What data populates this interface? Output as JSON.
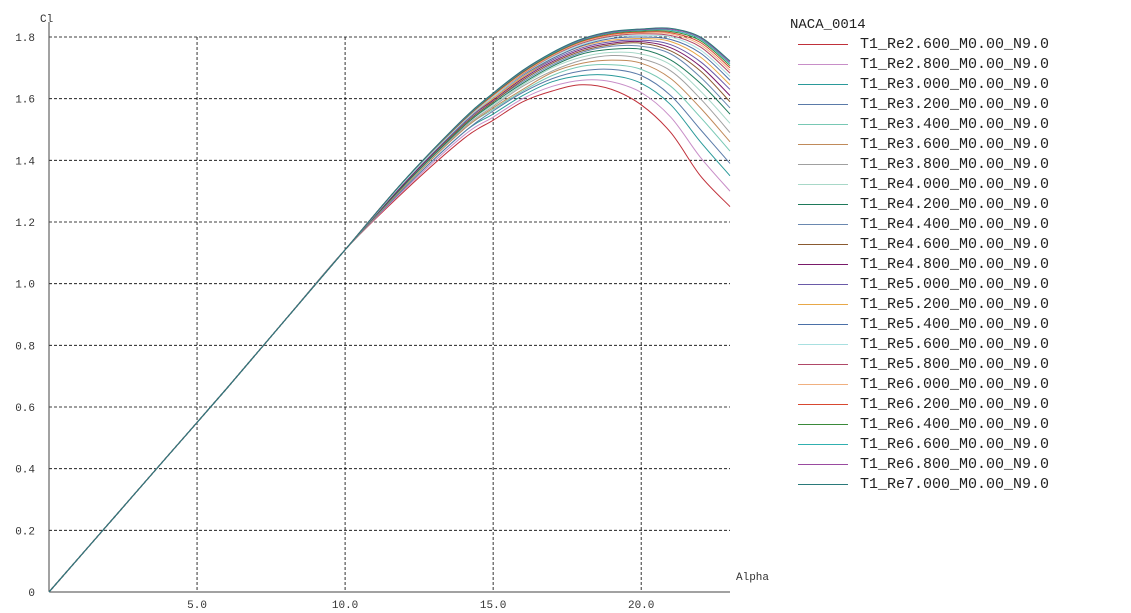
{
  "chart_data": {
    "type": "line",
    "title": "",
    "xlabel": "Alpha",
    "ylabel": "Cl",
    "xlim": [
      0,
      23
    ],
    "ylim": [
      0,
      1.8
    ],
    "x_ticks": [
      "5.0",
      "10.0",
      "15.0",
      "20.0"
    ],
    "y_ticks": [
      "0",
      "0.2",
      "0.4",
      "0.6",
      "0.8",
      "1.0",
      "1.2",
      "1.4",
      "1.6",
      "1.8"
    ],
    "grid": true,
    "legend_title": "NACA_0014",
    "legend_placement": "right",
    "series": [
      {
        "name": "T1_Re2.600_M0.00_N9.0",
        "color": "#c0303a",
        "x": [
          0,
          2,
          4,
          6,
          8,
          10,
          12,
          14,
          15,
          16,
          17,
          18,
          19,
          20,
          21,
          22,
          23
        ],
        "y": [
          0,
          0.22,
          0.44,
          0.66,
          0.885,
          1.11,
          1.3,
          1.47,
          1.53,
          1.59,
          1.625,
          1.645,
          1.63,
          1.58,
          1.49,
          1.35,
          1.25
        ]
      },
      {
        "name": "T1_Re2.800_M0.00_N9.0",
        "color": "#c88ec8",
        "x": [
          0,
          2,
          4,
          6,
          8,
          10,
          12,
          14,
          15,
          16,
          17,
          18,
          19,
          20,
          21,
          22,
          23
        ],
        "y": [
          0,
          0.22,
          0.44,
          0.66,
          0.885,
          1.11,
          1.305,
          1.48,
          1.54,
          1.6,
          1.64,
          1.66,
          1.655,
          1.62,
          1.54,
          1.41,
          1.3
        ]
      },
      {
        "name": "T1_Re3.000_M0.00_N9.0",
        "color": "#2a9a9a",
        "x": [
          0,
          2,
          4,
          6,
          8,
          10,
          12,
          14,
          15,
          16,
          17,
          18,
          19,
          20,
          21,
          22,
          23
        ],
        "y": [
          0,
          0.22,
          0.44,
          0.66,
          0.885,
          1.11,
          1.31,
          1.49,
          1.55,
          1.61,
          1.655,
          1.675,
          1.675,
          1.65,
          1.58,
          1.46,
          1.35
        ]
      },
      {
        "name": "T1_Re3.200_M0.00_N9.0",
        "color": "#5a7aa8",
        "x": [
          0,
          2,
          4,
          6,
          8,
          10,
          12,
          14,
          15,
          16,
          17,
          18,
          19,
          20,
          21,
          22,
          23
        ],
        "y": [
          0,
          0.22,
          0.44,
          0.66,
          0.885,
          1.11,
          1.31,
          1.49,
          1.56,
          1.62,
          1.665,
          1.69,
          1.695,
          1.675,
          1.61,
          1.5,
          1.39
        ]
      },
      {
        "name": "T1_Re3.400_M0.00_N9.0",
        "color": "#78c8b4",
        "x": [
          0,
          2,
          4,
          6,
          8,
          10,
          12,
          14,
          15,
          16,
          17,
          18,
          19,
          20,
          21,
          22,
          23
        ],
        "y": [
          0,
          0.22,
          0.44,
          0.66,
          0.885,
          1.11,
          1.315,
          1.5,
          1.565,
          1.625,
          1.675,
          1.705,
          1.71,
          1.695,
          1.64,
          1.54,
          1.43
        ]
      },
      {
        "name": "T1_Re3.600_M0.00_N9.0",
        "color": "#c08a5a",
        "x": [
          0,
          2,
          4,
          6,
          8,
          10,
          12,
          14,
          15,
          16,
          17,
          18,
          19,
          20,
          21,
          22,
          23
        ],
        "y": [
          0,
          0.22,
          0.44,
          0.66,
          0.885,
          1.11,
          1.315,
          1.5,
          1.57,
          1.63,
          1.685,
          1.715,
          1.725,
          1.715,
          1.665,
          1.57,
          1.46
        ]
      },
      {
        "name": "T1_Re3.800_M0.00_N9.0",
        "color": "#a0a0a0",
        "x": [
          0,
          2,
          4,
          6,
          8,
          10,
          12,
          14,
          15,
          16,
          17,
          18,
          19,
          20,
          21,
          22,
          23
        ],
        "y": [
          0,
          0.22,
          0.44,
          0.66,
          0.885,
          1.11,
          1.32,
          1.505,
          1.575,
          1.64,
          1.69,
          1.725,
          1.74,
          1.73,
          1.69,
          1.6,
          1.49
        ]
      },
      {
        "name": "T1_Re4.000_M0.00_N9.0",
        "color": "#a8d8c8",
        "x": [
          0,
          2,
          4,
          6,
          8,
          10,
          12,
          14,
          15,
          16,
          17,
          18,
          19,
          20,
          21,
          22,
          23
        ],
        "y": [
          0,
          0.22,
          0.44,
          0.66,
          0.885,
          1.11,
          1.32,
          1.51,
          1.58,
          1.645,
          1.7,
          1.735,
          1.75,
          1.745,
          1.71,
          1.625,
          1.52
        ]
      },
      {
        "name": "T1_Re4.200_M0.00_N9.0",
        "color": "#1e7a5a",
        "x": [
          0,
          2,
          4,
          6,
          8,
          10,
          12,
          14,
          15,
          16,
          17,
          18,
          19,
          20,
          21,
          22,
          23
        ],
        "y": [
          0,
          0.22,
          0.44,
          0.66,
          0.885,
          1.11,
          1.32,
          1.51,
          1.585,
          1.65,
          1.705,
          1.745,
          1.76,
          1.76,
          1.725,
          1.65,
          1.55
        ]
      },
      {
        "name": "T1_Re4.400_M0.00_N9.0",
        "color": "#6a88b0",
        "x": [
          0,
          2,
          4,
          6,
          8,
          10,
          12,
          14,
          15,
          16,
          17,
          18,
          19,
          20,
          21,
          22,
          23
        ],
        "y": [
          0,
          0.22,
          0.44,
          0.66,
          0.885,
          1.11,
          1.325,
          1.515,
          1.59,
          1.655,
          1.71,
          1.75,
          1.77,
          1.77,
          1.745,
          1.67,
          1.57
        ]
      },
      {
        "name": "T1_Re4.600_M0.00_N9.0",
        "color": "#8a5a30",
        "x": [
          0,
          2,
          4,
          6,
          8,
          10,
          12,
          14,
          15,
          16,
          17,
          18,
          19,
          20,
          21,
          22,
          23
        ],
        "y": [
          0,
          0.22,
          0.44,
          0.66,
          0.885,
          1.11,
          1.325,
          1.515,
          1.59,
          1.66,
          1.715,
          1.755,
          1.775,
          1.78,
          1.755,
          1.69,
          1.59
        ]
      },
      {
        "name": "T1_Re4.800_M0.00_N9.0",
        "color": "#7a1a6a",
        "x": [
          0,
          2,
          4,
          6,
          8,
          10,
          12,
          14,
          15,
          16,
          17,
          18,
          19,
          20,
          21,
          22,
          23
        ],
        "y": [
          0,
          0.22,
          0.44,
          0.66,
          0.885,
          1.11,
          1.325,
          1.52,
          1.595,
          1.665,
          1.72,
          1.76,
          1.78,
          1.785,
          1.765,
          1.705,
          1.61
        ]
      },
      {
        "name": "T1_Re5.000_M0.00_N9.0",
        "color": "#6a5aa8",
        "x": [
          0,
          2,
          4,
          6,
          8,
          10,
          12,
          14,
          15,
          16,
          17,
          18,
          19,
          20,
          21,
          22,
          23
        ],
        "y": [
          0,
          0.22,
          0.44,
          0.66,
          0.885,
          1.11,
          1.33,
          1.52,
          1.6,
          1.67,
          1.725,
          1.765,
          1.785,
          1.79,
          1.775,
          1.72,
          1.63
        ]
      },
      {
        "name": "T1_Re5.200_M0.00_N9.0",
        "color": "#e8a848",
        "x": [
          0,
          2,
          4,
          6,
          8,
          10,
          12,
          14,
          15,
          16,
          17,
          18,
          19,
          20,
          21,
          22,
          23
        ],
        "y": [
          0,
          0.22,
          0.44,
          0.66,
          0.885,
          1.11,
          1.33,
          1.525,
          1.6,
          1.67,
          1.73,
          1.77,
          1.79,
          1.795,
          1.785,
          1.735,
          1.645
        ]
      },
      {
        "name": "T1_Re5.400_M0.00_N9.0",
        "color": "#4a70a8",
        "x": [
          0,
          2,
          4,
          6,
          8,
          10,
          12,
          14,
          15,
          16,
          17,
          18,
          19,
          20,
          21,
          22,
          23
        ],
        "y": [
          0,
          0.22,
          0.44,
          0.66,
          0.885,
          1.11,
          1.33,
          1.525,
          1.605,
          1.675,
          1.73,
          1.772,
          1.795,
          1.8,
          1.792,
          1.748,
          1.66
        ]
      },
      {
        "name": "T1_Re5.600_M0.00_N9.0",
        "color": "#a8e0e0",
        "x": [
          0,
          2,
          4,
          6,
          8,
          10,
          12,
          14,
          15,
          16,
          17,
          18,
          19,
          20,
          21,
          22,
          23
        ],
        "y": [
          0,
          0.22,
          0.44,
          0.66,
          0.885,
          1.11,
          1.33,
          1.525,
          1.605,
          1.678,
          1.735,
          1.776,
          1.8,
          1.805,
          1.8,
          1.758,
          1.672
        ]
      },
      {
        "name": "T1_Re5.800_M0.00_N9.0",
        "color": "#b04868",
        "x": [
          0,
          2,
          4,
          6,
          8,
          10,
          12,
          14,
          15,
          16,
          17,
          18,
          19,
          20,
          21,
          22,
          23
        ],
        "y": [
          0,
          0.22,
          0.44,
          0.66,
          0.885,
          1.11,
          1.335,
          1.53,
          1.61,
          1.68,
          1.738,
          1.78,
          1.803,
          1.81,
          1.805,
          1.768,
          1.683
        ]
      },
      {
        "name": "T1_Re6.000_M0.00_N9.0",
        "color": "#f0b080",
        "x": [
          0,
          2,
          4,
          6,
          8,
          10,
          12,
          14,
          15,
          16,
          17,
          18,
          19,
          20,
          21,
          22,
          23
        ],
        "y": [
          0,
          0.22,
          0.44,
          0.66,
          0.885,
          1.11,
          1.335,
          1.53,
          1.61,
          1.682,
          1.74,
          1.783,
          1.806,
          1.813,
          1.81,
          1.775,
          1.692
        ]
      },
      {
        "name": "T1_Re6.200_M0.00_N9.0",
        "color": "#d84830",
        "x": [
          0,
          2,
          4,
          6,
          8,
          10,
          12,
          14,
          15,
          16,
          17,
          18,
          19,
          20,
          21,
          22,
          23
        ],
        "y": [
          0,
          0.22,
          0.44,
          0.66,
          0.885,
          1.11,
          1.335,
          1.53,
          1.612,
          1.685,
          1.743,
          1.786,
          1.809,
          1.816,
          1.814,
          1.782,
          1.7
        ]
      },
      {
        "name": "T1_Re6.400_M0.00_N9.0",
        "color": "#3a8a3a",
        "x": [
          0,
          2,
          4,
          6,
          8,
          10,
          12,
          14,
          15,
          16,
          17,
          18,
          19,
          20,
          21,
          22,
          23
        ],
        "y": [
          0,
          0.22,
          0.44,
          0.66,
          0.885,
          1.11,
          1.335,
          1.532,
          1.614,
          1.687,
          1.745,
          1.788,
          1.812,
          1.819,
          1.818,
          1.788,
          1.707
        ]
      },
      {
        "name": "T1_Re6.600_M0.00_N9.0",
        "color": "#30b0b0",
        "x": [
          0,
          2,
          4,
          6,
          8,
          10,
          12,
          14,
          15,
          16,
          17,
          18,
          19,
          20,
          21,
          22,
          23
        ],
        "y": [
          0,
          0.22,
          0.44,
          0.66,
          0.885,
          1.11,
          1.335,
          1.533,
          1.616,
          1.689,
          1.747,
          1.79,
          1.814,
          1.822,
          1.822,
          1.793,
          1.713
        ]
      },
      {
        "name": "T1_Re6.800_M0.00_N9.0",
        "color": "#9a4aa0",
        "x": [
          0,
          2,
          4,
          6,
          8,
          10,
          12,
          14,
          15,
          16,
          17,
          18,
          19,
          20,
          21,
          22,
          23
        ],
        "y": [
          0,
          0.22,
          0.44,
          0.66,
          0.885,
          1.11,
          1.335,
          1.534,
          1.617,
          1.69,
          1.749,
          1.792,
          1.816,
          1.824,
          1.825,
          1.797,
          1.718
        ]
      },
      {
        "name": "T1_Re7.000_M0.00_N9.0",
        "color": "#2a7a7a",
        "x": [
          0,
          2,
          4,
          6,
          8,
          10,
          12,
          14,
          15,
          16,
          17,
          18,
          19,
          20,
          21,
          22,
          23
        ],
        "y": [
          0,
          0.22,
          0.44,
          0.66,
          0.885,
          1.11,
          1.335,
          1.535,
          1.618,
          1.692,
          1.75,
          1.794,
          1.818,
          1.826,
          1.828,
          1.8,
          1.722
        ]
      }
    ]
  }
}
